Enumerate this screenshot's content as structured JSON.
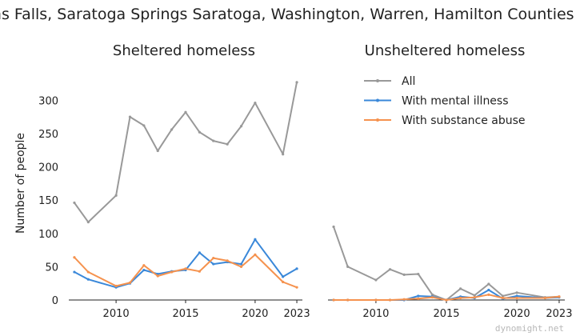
{
  "chart_data": {
    "suptitle": "Glens Falls, Saratoga Springs Saratoga, Washington, Warren, Hamilton Counties CoC",
    "ylabel": "Number of people",
    "watermark": "dynomight.net",
    "colors": {
      "All": "#999999",
      "With mental illness": "#3a88d9",
      "With substance abuse": "#f5924e"
    },
    "legend": [
      "All",
      "With mental illness",
      "With substance abuse"
    ],
    "yticks": [
      0,
      50,
      100,
      150,
      200,
      250,
      300
    ],
    "xticks": [
      2010,
      2015,
      2020,
      2023
    ],
    "panels": [
      {
        "type": "line",
        "title": "Sheltered homeless",
        "xlim": [
          2006.6,
          2023.4
        ],
        "ylim": [
          0,
          340
        ],
        "series": [
          {
            "name": "All",
            "x": [
              2007,
              2008,
              2010,
              2011,
              2012,
              2013,
              2014,
              2015,
              2016,
              2017,
              2018,
              2019,
              2020,
              2022,
              2023
            ],
            "y": [
              146,
              117,
              157,
              275,
              262,
              224,
              256,
              282,
              252,
              239,
              234,
              261,
              296,
              219,
              327
            ]
          },
          {
            "name": "With mental illness",
            "x": [
              2007,
              2008,
              2010,
              2011,
              2012,
              2013,
              2014,
              2015,
              2016,
              2017,
              2018,
              2019,
              2020,
              2022,
              2023
            ],
            "y": [
              42,
              31,
              19,
              25,
              45,
              39,
              43,
              45,
              71,
              54,
              57,
              54,
              91,
              35,
              47
            ]
          },
          {
            "name": "With substance abuse",
            "x": [
              2007,
              2008,
              2010,
              2011,
              2012,
              2013,
              2014,
              2015,
              2016,
              2017,
              2018,
              2019,
              2020,
              2022,
              2023
            ],
            "y": [
              64,
              42,
              21,
              26,
              52,
              36,
              42,
              47,
              43,
              63,
              59,
              50,
              68,
              27,
              19
            ]
          }
        ]
      },
      {
        "type": "line",
        "title": "Unsheltered homeless",
        "xlim": [
          2006.6,
          2023.4
        ],
        "ylim": [
          0,
          340
        ],
        "series": [
          {
            "name": "All",
            "x": [
              2007,
              2008,
              2010,
              2011,
              2012,
              2013,
              2014,
              2015,
              2016,
              2017,
              2018,
              2019,
              2020,
              2022,
              2023
            ],
            "y": [
              110,
              50,
              30,
              46,
              38,
              39,
              8,
              0,
              17,
              7,
              24,
              6,
              11,
              4,
              5
            ]
          },
          {
            "name": "With mental illness",
            "x": [
              2007,
              2008,
              2010,
              2011,
              2012,
              2013,
              2014,
              2015,
              2016,
              2017,
              2018,
              2019,
              2020,
              2022,
              2023
            ],
            "y": [
              0,
              0,
              0,
              0,
              0,
              6,
              5,
              0,
              5,
              3,
              15,
              2,
              6,
              3,
              4
            ]
          },
          {
            "name": "With substance abuse",
            "x": [
              2007,
              2008,
              2010,
              2011,
              2012,
              2013,
              2014,
              2015,
              2016,
              2017,
              2018,
              2019,
              2020,
              2022,
              2023
            ],
            "y": [
              0,
              0,
              0,
              0,
              1,
              2,
              4,
              0,
              3,
              4,
              8,
              3,
              3,
              3,
              5
            ]
          }
        ]
      }
    ]
  }
}
